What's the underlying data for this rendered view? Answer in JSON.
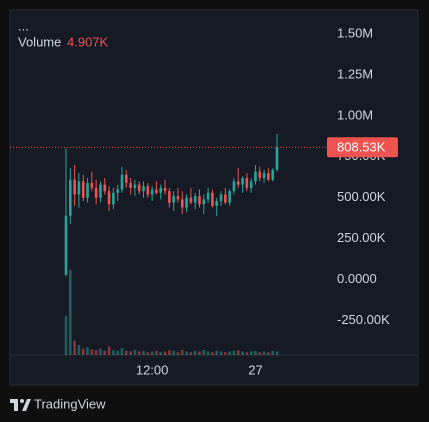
{
  "chart_data": {
    "type": "candlestick",
    "menu": "...",
    "volume": {
      "label": "Volume",
      "value_label": "4.907K",
      "values": [
        55000,
        120000,
        20000,
        14000,
        9000,
        11000,
        8000,
        7000,
        9000,
        6000,
        12000,
        7000,
        6000,
        10000,
        6000,
        5000,
        7000,
        5000,
        6000,
        4000,
        5000,
        6000,
        4000,
        5000,
        7000,
        6000,
        4000,
        7000,
        5000,
        4000,
        6000,
        5000,
        7000,
        5000,
        4000,
        6000,
        5000,
        4000,
        5000,
        6000,
        7000,
        5000,
        4000,
        5000,
        6000,
        4000,
        5000,
        4000,
        6000,
        4907
      ]
    },
    "open": [
      30000,
      390000,
      610000,
      520000,
      600000,
      500000,
      590000,
      560000,
      500000,
      580000,
      540000,
      460000,
      530000,
      550000,
      640000,
      590000,
      560000,
      580000,
      540000,
      570000,
      520000,
      550000,
      530000,
      560000,
      540000,
      470000,
      510000,
      490000,
      440000,
      500000,
      470000,
      510000,
      460000,
      490000,
      530000,
      450000,
      480000,
      520000,
      470000,
      540000,
      600000,
      580000,
      620000,
      560000,
      600000,
      660000,
      620000,
      650000,
      610000,
      670000
    ],
    "high": [
      800000,
      680000,
      700000,
      650000,
      640000,
      620000,
      660000,
      610000,
      600000,
      620000,
      570000,
      560000,
      580000,
      690000,
      670000,
      620000,
      610000,
      600000,
      600000,
      590000,
      570000,
      600000,
      580000,
      610000,
      560000,
      540000,
      560000,
      540000,
      520000,
      560000,
      530000,
      550000,
      520000,
      560000,
      550000,
      500000,
      540000,
      560000,
      550000,
      620000,
      680000,
      630000,
      650000,
      620000,
      700000,
      690000,
      670000,
      680000,
      680000,
      890000
    ],
    "low": [
      20000,
      340000,
      450000,
      440000,
      480000,
      470000,
      540000,
      460000,
      470000,
      520000,
      420000,
      430000,
      480000,
      530000,
      560000,
      520000,
      510000,
      520000,
      500000,
      500000,
      480000,
      520000,
      490000,
      520000,
      440000,
      420000,
      470000,
      400000,
      410000,
      460000,
      430000,
      440000,
      400000,
      470000,
      440000,
      390000,
      450000,
      460000,
      450000,
      520000,
      560000,
      530000,
      540000,
      530000,
      580000,
      600000,
      590000,
      600000,
      600000,
      660000
    ],
    "close": [
      390000,
      610000,
      520000,
      600000,
      500000,
      590000,
      560000,
      500000,
      580000,
      540000,
      460000,
      530000,
      550000,
      640000,
      590000,
      560000,
      580000,
      540000,
      570000,
      520000,
      550000,
      530000,
      560000,
      540000,
      470000,
      510000,
      490000,
      440000,
      500000,
      470000,
      510000,
      460000,
      490000,
      530000,
      450000,
      480000,
      520000,
      470000,
      540000,
      600000,
      580000,
      620000,
      560000,
      600000,
      660000,
      620000,
      650000,
      610000,
      670000,
      808530
    ],
    "up_color": "#26a69a",
    "down_color": "#ef5350",
    "last_price": 808530,
    "last_price_label": "808.53K",
    "ylim": [
      -460000,
      1640000
    ],
    "yticks": [
      {
        "value": 1500000,
        "label": "1.50M"
      },
      {
        "value": 1250000,
        "label": "1.25M"
      },
      {
        "value": 1000000,
        "label": "1.00M"
      },
      {
        "value": 750000,
        "label": "750.00K"
      },
      {
        "value": 500000,
        "label": "500.00K"
      },
      {
        "value": 250000,
        "label": "250.00K"
      },
      {
        "value": 0,
        "label": "0.0000"
      },
      {
        "value": -250000,
        "label": "-250.00K"
      }
    ],
    "xlim": [
      0,
      49
    ],
    "xticks": [
      {
        "value": 20,
        "label": "12:00"
      },
      {
        "value": 44,
        "label": "27"
      }
    ]
  },
  "branding": "TradingView"
}
